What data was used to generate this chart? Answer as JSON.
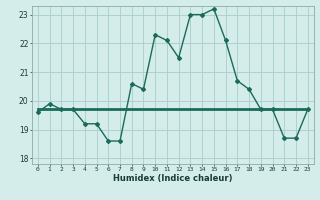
{
  "title": "",
  "xlabel": "Humidex (Indice chaleur)",
  "ylabel": "",
  "background_color": "#d4ecea",
  "grid_color": "#a8cccc",
  "line_color": "#1a6b5a",
  "xlim": [
    -0.5,
    23.5
  ],
  "ylim": [
    17.8,
    23.3
  ],
  "yticks": [
    18,
    19,
    20,
    21,
    22,
    23
  ],
  "xticks": [
    0,
    1,
    2,
    3,
    4,
    5,
    6,
    7,
    8,
    9,
    10,
    11,
    12,
    13,
    14,
    15,
    16,
    17,
    18,
    19,
    20,
    21,
    22,
    23
  ],
  "series1": [
    19.6,
    19.9,
    19.7,
    19.7,
    19.2,
    19.2,
    18.6,
    18.6,
    20.6,
    20.4,
    22.3,
    22.1,
    21.5,
    23.0,
    23.0,
    23.2,
    22.1,
    20.7,
    20.4,
    19.7,
    19.7,
    18.7,
    18.7,
    19.7
  ],
  "series2": [
    19.7,
    19.7,
    19.7,
    19.7,
    19.7,
    19.7,
    19.7,
    19.7,
    19.7,
    19.7,
    19.7,
    19.7,
    19.7,
    19.7,
    19.7,
    19.7,
    19.7,
    19.7,
    19.7,
    19.7,
    19.7,
    19.7,
    19.7,
    19.7
  ]
}
